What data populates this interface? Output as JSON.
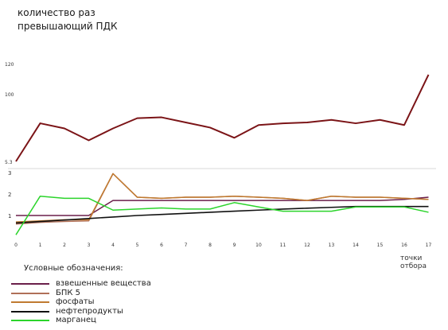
{
  "chart_data": [
    {
      "type": "line",
      "ylabel_lines": [
        "количество раз",
        "превышающий ПДК"
      ],
      "ytick_labels": [
        "120",
        "100",
        "5.3"
      ],
      "ylim": [
        5.3,
        120
      ],
      "x": [
        0,
        1,
        2,
        3,
        4,
        5,
        6,
        7,
        8,
        9,
        10,
        11,
        12,
        13,
        14,
        15,
        16,
        17
      ],
      "series": [
        {
          "name": "",
          "color": "#7b1417",
          "values": [
            5.3,
            50,
            44,
            30,
            44,
            56,
            57,
            51,
            45,
            33,
            48,
            50,
            51,
            54,
            50,
            54,
            48,
            107
          ]
        }
      ]
    },
    {
      "type": "line",
      "ytick_labels": [
        "3",
        "2",
        "1"
      ],
      "ylim": [
        0,
        3
      ],
      "xtick_labels": [
        "0",
        "1",
        "2",
        "3",
        "4",
        "5",
        "6",
        "7",
        "8",
        "9",
        "10",
        "11",
        "12",
        "13",
        "14",
        "15",
        "16",
        "17"
      ],
      "x_unit": "точки отбора",
      "series": [
        {
          "name": "взвешенные вещества",
          "color": "#6b1f4a",
          "values": [
            1.0,
            1.0,
            1.0,
            1.0,
            1.7,
            1.7,
            1.7,
            1.7,
            1.7,
            1.7,
            1.7,
            1.7,
            1.7,
            1.7,
            1.7,
            1.7,
            1.75,
            1.85
          ]
        },
        {
          "name": "БПК 5",
          "color": "#b07058",
          "values": [
            0.6,
            0.68,
            0.72,
            0.75,
            2.95,
            1.85,
            1.8,
            1.85,
            1.85,
            1.9,
            1.85,
            1.8,
            1.7,
            1.9,
            1.85,
            1.85,
            1.8,
            1.75
          ]
        },
        {
          "name": "фосфаты",
          "color": "#c07a30",
          "values": [
            0.7,
            0.75,
            0.8,
            0.8,
            2.95,
            1.85,
            1.8,
            1.85,
            1.85,
            1.9,
            1.85,
            1.8,
            1.7,
            1.9,
            1.85,
            1.85,
            1.8,
            1.75
          ]
        },
        {
          "name": "нефтепродукты",
          "color": "#111111",
          "values": [
            0.65,
            0.72,
            0.79,
            0.86,
            0.93,
            1.0,
            1.05,
            1.1,
            1.15,
            1.2,
            1.25,
            1.3,
            1.34,
            1.38,
            1.42,
            1.42,
            1.42,
            1.42
          ]
        },
        {
          "name": "марганец",
          "color": "#2bd42b",
          "values": [
            0.1,
            1.9,
            1.8,
            1.8,
            1.25,
            1.3,
            1.35,
            1.3,
            1.3,
            1.6,
            1.4,
            1.2,
            1.2,
            1.2,
            1.4,
            1.4,
            1.4,
            1.15
          ]
        }
      ]
    }
  ],
  "legend": {
    "title": "Условные обозначения:",
    "items": [
      {
        "label": "взвешенные вещества",
        "color": "#6b1f4a"
      },
      {
        "label": "БПК 5",
        "color": "#b07058"
      },
      {
        "label": "фосфаты",
        "color": "#c07a30"
      },
      {
        "label": "нефтепродукты",
        "color": "#111111"
      },
      {
        "label": "марганец",
        "color": "#2bd42b"
      }
    ]
  }
}
